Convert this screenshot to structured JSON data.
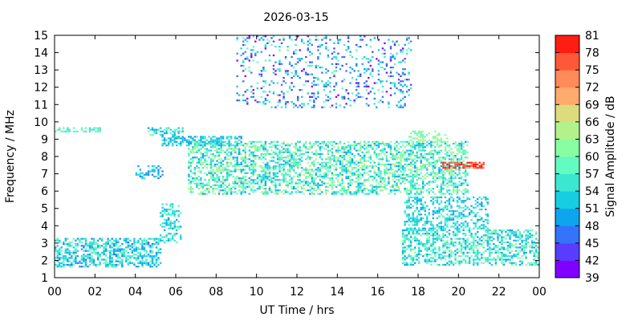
{
  "chart_data": {
    "type": "heatmap",
    "title": "2026-03-15",
    "xlabel": "UT Time / hrs",
    "ylabel": "Frequency / MHz",
    "xlim": [
      0,
      24
    ],
    "ylim": [
      1,
      15
    ],
    "xticks": [
      "00",
      "02",
      "04",
      "06",
      "08",
      "10",
      "12",
      "14",
      "16",
      "18",
      "20",
      "22",
      "00"
    ],
    "yticks": [
      "1",
      "2",
      "3",
      "4",
      "5",
      "6",
      "7",
      "8",
      "9",
      "10",
      "11",
      "12",
      "13",
      "14",
      "15"
    ],
    "colorbar": {
      "label": "Signal Amplitude / dB",
      "range": [
        39,
        81
      ],
      "ticks": [
        "39",
        "42",
        "45",
        "48",
        "51",
        "54",
        "57",
        "60",
        "63",
        "66",
        "69",
        "72",
        "75",
        "78",
        "81"
      ],
      "colors": [
        "#8000ff",
        "#5a3cfe",
        "#3473fa",
        "#0ea5ef",
        "#16cde1",
        "#3ce7d1",
        "#62fbc0",
        "#88fea4",
        "#b2f28c",
        "#dcdc7c",
        "#ffaa6e",
        "#ff8a5a",
        "#ff5838",
        "#ff1c10"
      ]
    },
    "bands": [
      {
        "name": "low-early",
        "t": [
          0.0,
          5.2
        ],
        "f": [
          1.6,
          3.3
        ],
        "amp": [
          47,
          60
        ],
        "density": 0.55
      },
      {
        "name": "early-9.5",
        "t": [
          0.0,
          2.3
        ],
        "f": [
          9.4,
          9.7
        ],
        "amp": [
          55,
          60
        ],
        "density": 0.5
      },
      {
        "name": "low-late",
        "t": [
          17.2,
          24.0
        ],
        "f": [
          1.7,
          3.8
        ],
        "amp": [
          48,
          62
        ],
        "density": 0.5
      },
      {
        "name": "late-mid",
        "t": [
          17.3,
          21.5
        ],
        "f": [
          3.8,
          5.6
        ],
        "amp": [
          49,
          58
        ],
        "density": 0.4
      },
      {
        "name": "main-trace",
        "t": [
          6.6,
          20.5
        ],
        "f": [
          5.8,
          8.8
        ],
        "amp": [
          49,
          66
        ],
        "density": 0.5
      },
      {
        "name": "dawn-8.8",
        "t": [
          5.3,
          9.2
        ],
        "f": [
          8.6,
          9.1
        ],
        "amp": [
          48,
          57
        ],
        "density": 0.55
      },
      {
        "name": "dawn-9.4",
        "t": [
          4.6,
          6.3
        ],
        "f": [
          9.2,
          9.6
        ],
        "amp": [
          48,
          62
        ],
        "density": 0.5
      },
      {
        "name": "mid-7",
        "t": [
          4.0,
          5.3
        ],
        "f": [
          6.7,
          7.4
        ],
        "amp": [
          47,
          56
        ],
        "density": 0.4
      },
      {
        "name": "sporadic-high",
        "t": [
          9.0,
          17.6
        ],
        "f": [
          10.8,
          14.9
        ],
        "amp": [
          40,
          60
        ],
        "density": 0.16
      },
      {
        "name": "evening-hot",
        "t": [
          19.2,
          21.3
        ],
        "f": [
          7.3,
          7.6
        ],
        "amp": [
          74,
          81
        ],
        "density": 0.6
      },
      {
        "name": "sunrise-rise",
        "t": [
          5.2,
          6.2
        ],
        "f": [
          3.0,
          5.2
        ],
        "amp": [
          50,
          58
        ],
        "density": 0.35
      },
      {
        "name": "evening-9",
        "t": [
          17.5,
          19.5
        ],
        "f": [
          8.8,
          9.4
        ],
        "amp": [
          57,
          66
        ],
        "density": 0.35
      }
    ]
  }
}
